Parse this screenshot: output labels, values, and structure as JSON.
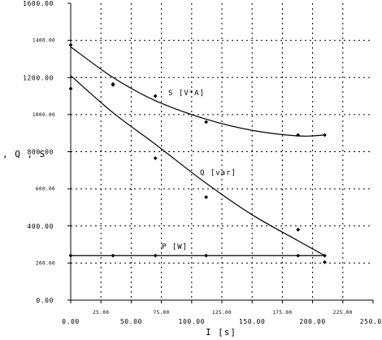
{
  "chart_data": {
    "type": "scatter",
    "title": "",
    "xlabel": "I [s]",
    "ylabel": "P , Q , S",
    "xlim": [
      0,
      250
    ],
    "ylim": [
      0,
      1600
    ],
    "grid": true,
    "x_ticks_major": [
      "0.00",
      "50.00",
      "100.00",
      "150.00",
      "200.00",
      "250.00"
    ],
    "x_ticks_minor": [
      "25.00",
      "75.00",
      "125.00",
      "175.00",
      "225.00"
    ],
    "y_ticks_major": [
      "0.00",
      "400.00",
      "800.00",
      "1200.00",
      "1600.00"
    ],
    "y_ticks_minor": [
      "200.00",
      "600.00",
      "1000.00",
      "1400.00"
    ],
    "series": [
      {
        "name": "S [V*A]",
        "points": [
          [
            0,
            1375
          ],
          [
            35,
            1165
          ],
          [
            70,
            1100
          ],
          [
            112,
            960
          ],
          [
            188,
            890
          ],
          [
            210,
            890
          ]
        ],
        "fit": [
          [
            0,
            1365
          ],
          [
            35,
            1200
          ],
          [
            70,
            1075
          ],
          [
            112,
            975
          ],
          [
            150,
            915
          ],
          [
            188,
            885
          ],
          [
            210,
            890
          ]
        ]
      },
      {
        "name": "Q [var]",
        "points": [
          [
            0,
            1140
          ],
          [
            35,
            1160
          ],
          [
            70,
            765
          ],
          [
            112,
            555
          ],
          [
            188,
            380
          ],
          [
            210,
            205
          ]
        ],
        "fit": [
          [
            0,
            1210
          ],
          [
            35,
            1010
          ],
          [
            70,
            840
          ],
          [
            112,
            630
          ],
          [
            150,
            460
          ],
          [
            188,
            320
          ],
          [
            210,
            240
          ]
        ]
      },
      {
        "name": "P [W]",
        "points": [
          [
            0,
            240
          ],
          [
            35,
            240
          ],
          [
            70,
            240
          ],
          [
            112,
            240
          ],
          [
            188,
            240
          ],
          [
            210,
            240
          ]
        ],
        "fit": [
          [
            0,
            240
          ],
          [
            210,
            240
          ]
        ]
      }
    ]
  }
}
